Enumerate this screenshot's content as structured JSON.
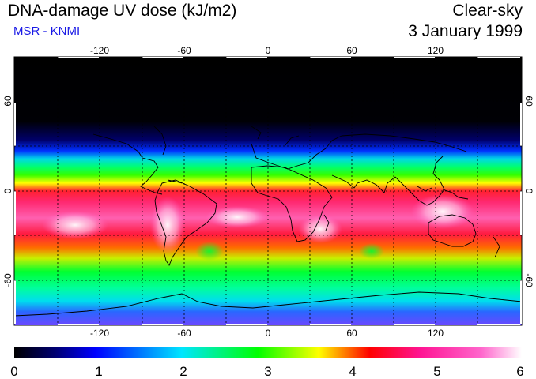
{
  "header": {
    "title": "DNA-damage UV dose (kJ/m2)",
    "source": "MSR - KNMI",
    "condition": "Clear-sky",
    "date": "3 January 1999"
  },
  "map": {
    "lon_ticks": [
      "-120",
      "-60",
      "0",
      "60",
      "120"
    ],
    "lat_ticks": [
      "60",
      "0",
      "-60"
    ],
    "lon_range": [
      -180,
      180
    ],
    "lat_range": [
      -90,
      90
    ]
  },
  "colorbar": {
    "ticks": [
      "0",
      "1",
      "2",
      "3",
      "4",
      "5",
      "6"
    ],
    "range": [
      0,
      6
    ],
    "stops": [
      "#000000",
      "#000070",
      "#0000ff",
      "#00e6ff",
      "#00ff00",
      "#ffff00",
      "#ff0000",
      "#ff1493",
      "#ff66cc",
      "#ffffff"
    ]
  },
  "colors": {
    "source_text": "#1a1ae6",
    "coastline": "#000000",
    "frame": "#000000"
  }
}
